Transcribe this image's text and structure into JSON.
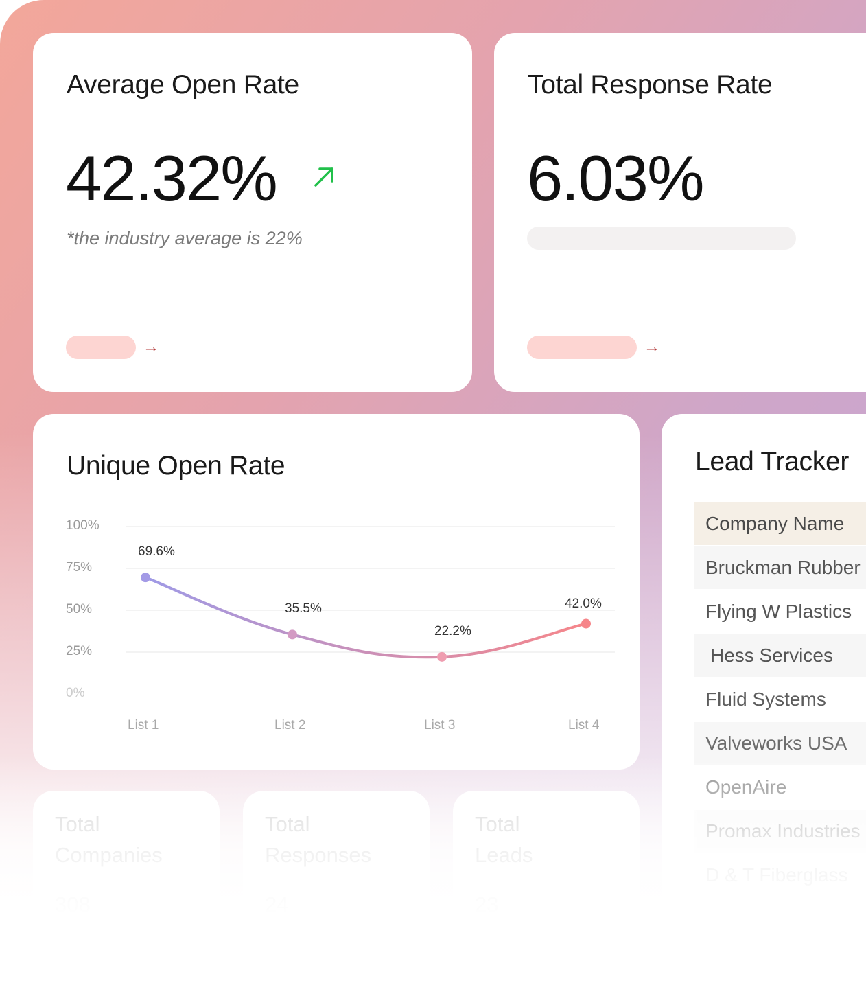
{
  "colors": {
    "accent_green": "#21c04a",
    "pill_pink": "#fdd5d2",
    "arrow_red": "#b33a3a",
    "line_start": "#9f9ae6",
    "line_end": "#f6868a"
  },
  "open_rate_card": {
    "title": "Average Open Rate",
    "value": "42.32%",
    "trend_icon": "arrow-up-right-icon",
    "note": "*the industry average is 22%",
    "link_arrow": "→"
  },
  "response_rate_card": {
    "title": "Total Response Rate",
    "value": "6.03%",
    "link_arrow": "→"
  },
  "unique_open_rate": {
    "title": "Unique Open Rate",
    "chart_data": {
      "type": "line",
      "title": "Unique Open Rate",
      "categories": [
        "List 1",
        "List 2",
        "List 3",
        "List 4"
      ],
      "values": [
        69.6,
        35.5,
        22.2,
        42.0
      ],
      "data_labels": [
        "69.6%",
        "35.5%",
        "22.2%",
        "42.0%"
      ],
      "y_ticks": [
        "100%",
        "75%",
        "50%",
        "25%",
        "0%"
      ],
      "ylim": [
        0,
        100
      ],
      "grid": true,
      "xlabel": "",
      "ylabel": ""
    }
  },
  "lead_tracker": {
    "title": "Lead Tracker",
    "header": "Company Name",
    "companies": [
      "Bruckman Rubber",
      "Flying W Plastics",
      "Hess Services",
      "Fluid Systems",
      "Valveworks USA",
      "OpenAire",
      "Promax Industries",
      "D & T Fiberglass"
    ]
  },
  "stats": [
    {
      "label_line1": "Total",
      "label_line2": "Companies",
      "value": "308"
    },
    {
      "label_line1": "Total",
      "label_line2": "Responses",
      "value": "24"
    },
    {
      "label_line1": "Total",
      "label_line2": "Leads",
      "value": "23"
    }
  ]
}
